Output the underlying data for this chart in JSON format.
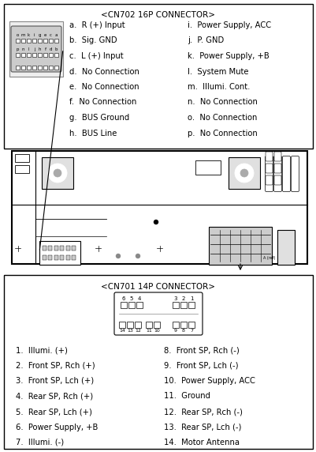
{
  "bg_color": "#ffffff",
  "cn702_title": "<CN702 16P CONNECTOR>",
  "cn702_left": [
    "a.  R (+) Input",
    "b.  Sig. GND",
    "c.  L (+) Input",
    "d.  No Connection",
    "e.  No Connection",
    "f.  No Connection",
    "g.  BUS Ground",
    "h.  BUS Line"
  ],
  "cn702_right": [
    "i.  Power Supply, ACC",
    "j.  P. GND",
    "k.  Power Supply, +B",
    "l.  System Mute",
    "m.  Illumi. Cont.",
    "n.  No Connection",
    "o.  No Connection",
    "p.  No Connection"
  ],
  "cn702_pin_row1": "o m k i g e c a",
  "cn702_pin_row2": "p n l j h f d b",
  "cn701_title": "<CN701 14P CONNECTOR>",
  "cn701_row1_left": [
    "6",
    "5",
    "4"
  ],
  "cn701_row1_right": [
    "3",
    "2",
    "1"
  ],
  "cn701_row2_left": [
    "14",
    "13",
    "12"
  ],
  "cn701_row2_mid": [
    "11",
    "10"
  ],
  "cn701_row2_right": [
    "9",
    "8",
    "7"
  ],
  "cn701_left": [
    "1.  Illumi. (+)",
    "2.  Front SP, Rch (+)",
    "3.  Front SP, Lch (+)",
    "4.  Rear SP, Rch (+)",
    "5.  Rear SP, Lch (+)",
    "6.  Power Supply, +B",
    "7.  Illumi. (-)"
  ],
  "cn701_right": [
    "8.  Front SP, Rch (-)",
    "9.  Front SP, Lch (-)",
    "10.  Power Supply, ACC",
    "11.  Ground",
    "12.  Rear SP, Rch (-)",
    "13.  Rear SP, Lch (-)",
    "14.  Motor Antenna"
  ]
}
